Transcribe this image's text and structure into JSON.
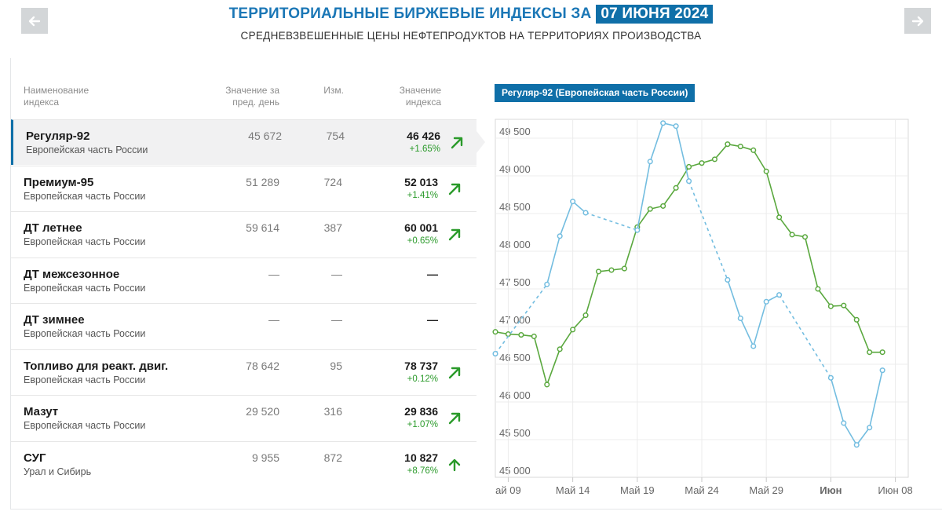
{
  "header": {
    "title": "ТЕРРИТОРИАЛЬНЫЕ БИРЖЕВЫЕ ИНДЕКСЫ ЗА",
    "date": "07 ИЮНЯ 2024",
    "subtitle": "СРЕДНЕВЗВЕШЕННЫЕ ЦЕНЫ НЕФТЕПРОДУКТОВ НА ТЕРРИТОРИЯХ ПРОИЗВОДСТВА",
    "prev_icon": "arrow-left-icon",
    "next_icon": "arrow-right-icon"
  },
  "table": {
    "columns": {
      "name": [
        "Наименование",
        "индекса"
      ],
      "prev": [
        "Значение за",
        "пред. день"
      ],
      "change": [
        "Изм."
      ],
      "value": [
        "Значение",
        "индекса"
      ]
    },
    "rows": [
      {
        "name": "Регуляр-92",
        "region": "Европейская часть России",
        "prev": "45 672",
        "change": "754",
        "value": "46 426",
        "pct": "+1.65%",
        "arrow": "arrow-up-right-icon"
      },
      {
        "name": "Премиум-95",
        "region": "Европейская часть России",
        "prev": "51 289",
        "change": "724",
        "value": "52 013",
        "pct": "+1.41%",
        "arrow": "arrow-up-right-icon"
      },
      {
        "name": "ДТ летнее",
        "region": "Европейская часть России",
        "prev": "59 614",
        "change": "387",
        "value": "60 001",
        "pct": "+0.65%",
        "arrow": "arrow-up-right-icon"
      },
      {
        "name": "ДТ межсезонное",
        "region": "Европейская часть России",
        "prev": "—",
        "change": "—",
        "value": "—",
        "pct": "",
        "arrow": ""
      },
      {
        "name": "ДТ зимнее",
        "region": "Европейская часть России",
        "prev": "—",
        "change": "—",
        "value": "—",
        "pct": "",
        "arrow": ""
      },
      {
        "name": "Топливо для реакт. двиг.",
        "region": "Европейская часть России",
        "prev": "78 642",
        "change": "95",
        "value": "78 737",
        "pct": "+0.12%",
        "arrow": "arrow-up-right-icon"
      },
      {
        "name": "Мазут",
        "region": "Европейская часть России",
        "prev": "29 520",
        "change": "316",
        "value": "29 836",
        "pct": "+1.07%",
        "arrow": "arrow-up-right-icon"
      },
      {
        "name": "СУГ",
        "region": "Урал и Сибирь",
        "prev": "9 955",
        "change": "872",
        "value": "10 827",
        "pct": "+8.76%",
        "arrow": "arrow-up-icon"
      }
    ]
  },
  "colors": {
    "accent": "#0f6fa8",
    "title": "#1b77b6",
    "up": "#2a9a2a",
    "series_green": "#5aa83e",
    "series_blue": "#73bde0"
  },
  "chart_label": "Регуляр-92 (Европейская часть России)",
  "chart_data": {
    "type": "line",
    "ylim": [
      45000,
      49750
    ],
    "yticks": [
      45000,
      45500,
      46000,
      46500,
      47000,
      47500,
      48000,
      48500,
      49000,
      49500
    ],
    "ytick_labels": [
      "45 000",
      "45 500",
      "46 000",
      "46 500",
      "47 000",
      "47 500",
      "48 000",
      "48 500",
      "49 000",
      "49 500"
    ],
    "xlim": [
      "2024-05-08",
      "2024-06-09"
    ],
    "xticks": [
      {
        "date": "2024-05-09",
        "label": "ай 09"
      },
      {
        "date": "2024-05-14",
        "label": "Май 14"
      },
      {
        "date": "2024-05-19",
        "label": "Май 19"
      },
      {
        "date": "2024-05-24",
        "label": "Май 24"
      },
      {
        "date": "2024-05-29",
        "label": "Май 29"
      },
      {
        "date": "2024-06-03",
        "label": "Июн",
        "bold": true
      },
      {
        "date": "2024-06-08",
        "label": "Июн 08"
      }
    ],
    "grid": true,
    "series": [
      {
        "color": "#5aa83e",
        "points": [
          [
            "2024-05-08",
            46930
          ],
          [
            "2024-05-09",
            46900
          ],
          [
            "2024-05-10",
            46890
          ],
          [
            "2024-05-11",
            46870
          ],
          [
            "2024-05-12",
            46230
          ],
          [
            "2024-05-13",
            46700
          ],
          [
            "2024-05-14",
            46960
          ],
          [
            "2024-05-15",
            47150
          ],
          [
            "2024-05-16",
            47730
          ],
          [
            "2024-05-17",
            47750
          ],
          [
            "2024-05-18",
            47770
          ],
          [
            "2024-05-19",
            48320
          ],
          [
            "2024-05-20",
            48560
          ],
          [
            "2024-05-21",
            48600
          ],
          [
            "2024-05-22",
            48840
          ],
          [
            "2024-05-23",
            49120
          ],
          [
            "2024-05-24",
            49170
          ],
          [
            "2024-05-25",
            49220
          ],
          [
            "2024-05-26",
            49420
          ],
          [
            "2024-05-27",
            49390
          ],
          [
            "2024-05-28",
            49340
          ],
          [
            "2024-05-29",
            49060
          ],
          [
            "2024-05-30",
            48450
          ],
          [
            "2024-05-31",
            48220
          ],
          [
            "2024-06-01",
            48190
          ],
          [
            "2024-06-02",
            47500
          ],
          [
            "2024-06-03",
            47270
          ],
          [
            "2024-06-04",
            47280
          ],
          [
            "2024-06-05",
            47090
          ],
          [
            "2024-06-06",
            46660
          ],
          [
            "2024-06-07",
            46660
          ]
        ]
      },
      {
        "color": "#73bde0",
        "points": [
          [
            "2024-05-08",
            46640
          ],
          [
            "2024-05-12",
            47560
          ],
          [
            "2024-05-13",
            48200
          ],
          [
            "2024-05-14",
            48660
          ],
          [
            "2024-05-15",
            48510
          ],
          [
            "2024-05-19",
            48280
          ],
          [
            "2024-05-20",
            49190
          ],
          [
            "2024-05-21",
            49700
          ],
          [
            "2024-05-22",
            49660
          ],
          [
            "2024-05-23",
            48930
          ],
          [
            "2024-05-26",
            47620
          ],
          [
            "2024-05-27",
            47110
          ],
          [
            "2024-05-28",
            46740
          ],
          [
            "2024-05-29",
            47330
          ],
          [
            "2024-05-30",
            47420
          ],
          [
            "2024-06-03",
            46320
          ],
          [
            "2024-06-04",
            45720
          ],
          [
            "2024-06-05",
            45430
          ],
          [
            "2024-06-06",
            45660
          ],
          [
            "2024-06-07",
            46420
          ]
        ]
      }
    ]
  }
}
